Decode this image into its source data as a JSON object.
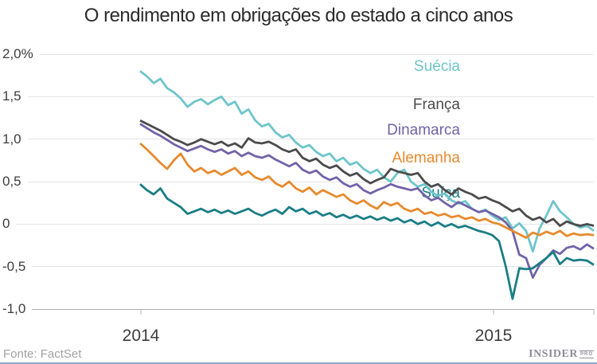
{
  "page": {
    "title": "O rendimento em obrigações do estado a cinco anos"
  },
  "footer": {
    "source_label": "Fonte: FactSet",
    "logo_text": "INSIDER",
    "logo_badge": "PRO",
    "accent_bar_color": "#87a9cc"
  },
  "chart_data": {
    "type": "line",
    "title": "O rendimento em obrigações do estado a cinco anos",
    "unit": "%",
    "grid": true,
    "legend_position": "inline-left",
    "x_axis": {
      "tick_labels": [
        "2014",
        "2015"
      ]
    },
    "y_axis": {
      "tick_labels": [
        "2,0%",
        "1,5",
        "1,0",
        "0,5",
        "0",
        "-0,5",
        "-1,0"
      ],
      "tick_values": [
        2.0,
        1.5,
        1.0,
        0.5,
        0,
        -0.5,
        -1.0
      ],
      "min": -1.0,
      "max": 2.0
    },
    "series": [
      {
        "name": "Suécia",
        "color": "#6ec5cb",
        "values": [
          1.8,
          1.74,
          1.66,
          1.71,
          1.6,
          1.55,
          1.48,
          1.38,
          1.44,
          1.47,
          1.41,
          1.46,
          1.5,
          1.4,
          1.44,
          1.3,
          1.35,
          1.22,
          1.15,
          1.18,
          1.08,
          1.02,
          1.05,
          0.96,
          0.9,
          0.93,
          0.85,
          0.8,
          0.83,
          0.74,
          0.78,
          0.7,
          0.73,
          0.65,
          0.6,
          0.64,
          0.55,
          0.5,
          0.6,
          0.64,
          0.5,
          0.44,
          0.47,
          0.38,
          0.33,
          0.36,
          0.28,
          0.24,
          0.27,
          0.18,
          0.14,
          0.17,
          0.1,
          0.05,
          0.08,
          -0.05,
          0.01,
          -0.08,
          -0.32,
          -0.05,
          0.1,
          0.27,
          0.15,
          0.08,
          0.0,
          -0.04,
          -0.02,
          -0.08
        ]
      },
      {
        "name": "França",
        "color": "#4b4b4b",
        "values": [
          1.22,
          1.18,
          1.14,
          1.1,
          1.05,
          1.0,
          0.97,
          0.93,
          0.96,
          1.0,
          0.97,
          0.94,
          0.97,
          0.92,
          0.95,
          0.9,
          1.01,
          0.96,
          0.95,
          0.97,
          0.93,
          0.88,
          0.85,
          0.88,
          0.78,
          0.74,
          0.77,
          0.7,
          0.66,
          0.69,
          0.62,
          0.57,
          0.6,
          0.53,
          0.48,
          0.52,
          0.55,
          0.65,
          0.62,
          0.6,
          0.58,
          0.6,
          0.5,
          0.44,
          0.47,
          0.4,
          0.35,
          0.42,
          0.38,
          0.35,
          0.3,
          0.32,
          0.28,
          0.25,
          0.2,
          0.15,
          0.18,
          0.1,
          0.05,
          0.08,
          0.02,
          0.06,
          -0.02,
          0.03,
          0.0,
          -0.02,
          0.0,
          -0.02
        ]
      },
      {
        "name": "Dinamarca",
        "color": "#7263a8",
        "values": [
          1.18,
          1.13,
          1.08,
          1.04,
          0.99,
          0.94,
          0.9,
          0.86,
          0.89,
          0.92,
          0.88,
          0.85,
          0.88,
          0.83,
          0.86,
          0.8,
          0.84,
          0.8,
          0.78,
          0.81,
          0.76,
          0.72,
          0.68,
          0.72,
          0.64,
          0.6,
          0.63,
          0.56,
          0.52,
          0.55,
          0.48,
          0.44,
          0.47,
          0.4,
          0.36,
          0.4,
          0.43,
          0.47,
          0.44,
          0.42,
          0.4,
          0.42,
          0.34,
          0.28,
          0.31,
          0.25,
          0.2,
          0.26,
          0.22,
          0.18,
          0.14,
          0.16,
          0.12,
          0.08,
          0.02,
          -0.08,
          -0.36,
          -0.4,
          -0.63,
          -0.48,
          -0.4,
          -0.31,
          -0.35,
          -0.28,
          -0.26,
          -0.3,
          -0.24,
          -0.29
        ]
      },
      {
        "name": "Alemanha",
        "color": "#e78a2e",
        "values": [
          0.95,
          0.88,
          0.8,
          0.72,
          0.65,
          0.75,
          0.83,
          0.7,
          0.62,
          0.66,
          0.6,
          0.63,
          0.58,
          0.62,
          0.66,
          0.58,
          0.62,
          0.55,
          0.52,
          0.56,
          0.48,
          0.44,
          0.5,
          0.42,
          0.38,
          0.43,
          0.35,
          0.4,
          0.36,
          0.32,
          0.35,
          0.28,
          0.24,
          0.28,
          0.22,
          0.18,
          0.26,
          0.22,
          0.25,
          0.18,
          0.15,
          0.18,
          0.12,
          0.14,
          0.1,
          0.12,
          0.08,
          0.1,
          0.06,
          0.08,
          0.04,
          0.06,
          0.02,
          0.0,
          -0.04,
          -0.08,
          -0.12,
          -0.16,
          -0.1,
          -0.13,
          -0.09,
          -0.12,
          -0.08,
          -0.14,
          -0.11,
          -0.13,
          -0.12,
          -0.13
        ]
      },
      {
        "name": "Suíça",
        "color": "#1a7e86",
        "values": [
          0.47,
          0.4,
          0.35,
          0.42,
          0.3,
          0.25,
          0.2,
          0.12,
          0.15,
          0.18,
          0.14,
          0.17,
          0.13,
          0.16,
          0.12,
          0.15,
          0.18,
          0.13,
          0.1,
          0.14,
          0.17,
          0.12,
          0.2,
          0.15,
          0.18,
          0.12,
          0.15,
          0.1,
          0.13,
          0.08,
          0.11,
          0.07,
          0.1,
          0.06,
          0.09,
          0.05,
          0.08,
          0.04,
          0.07,
          0.02,
          0.05,
          0.0,
          0.03,
          -0.02,
          0.02,
          -0.03,
          0.0,
          -0.04,
          -0.02,
          -0.05,
          -0.08,
          -0.1,
          -0.13,
          -0.2,
          -0.5,
          -0.88,
          -0.52,
          -0.53,
          -0.52,
          -0.46,
          -0.4,
          -0.33,
          -0.47,
          -0.4,
          -0.43,
          -0.42,
          -0.43,
          -0.48
        ]
      }
    ]
  }
}
